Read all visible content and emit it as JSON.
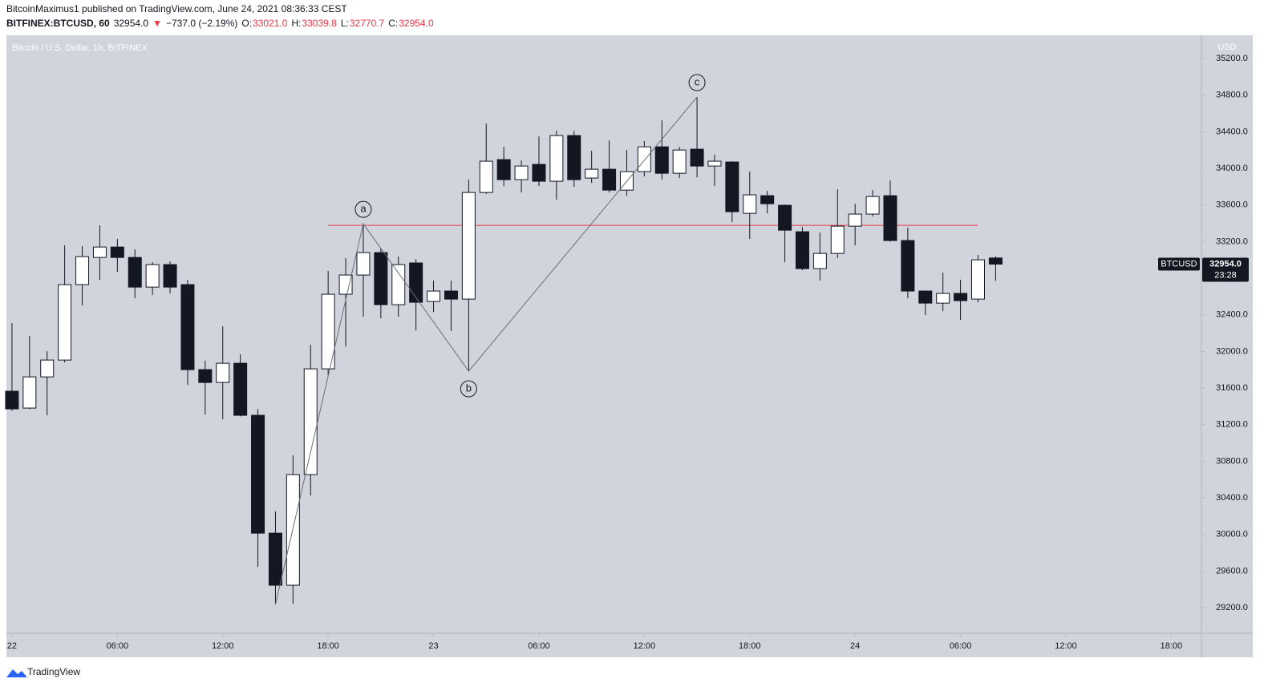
{
  "header": {
    "line1": "BitcoinMaximus1 published on TradingView.com, June 24, 2021 08:36:33 CEST",
    "symbol": "BITFINEX:BTCUSD, 60",
    "last": "32954.0",
    "arrow": "▼",
    "change": "−737.0 (−2.19%)",
    "o_key": "O:",
    "o": "33021.0",
    "h_key": "H:",
    "h": "33039.8",
    "l_key": "L:",
    "l": "32770.7",
    "c_key": "C:",
    "c": "32954.0"
  },
  "footer": "TradingView",
  "chart_data": {
    "type": "candlestick",
    "title": "Bitcoin / U.S. Dollar, 1h, BITFINEX",
    "y_axis_label": "USD",
    "price_tag": {
      "symbol": "BTCUSD",
      "price": "32954.0",
      "countdown": "23:28"
    },
    "up_color": "#ffffff",
    "down_color": "#131722",
    "x": [
      "2021-06-22T00:00",
      "2021-06-22T01:00",
      "2021-06-22T02:00",
      "2021-06-22T03:00",
      "2021-06-22T04:00",
      "2021-06-22T05:00",
      "2021-06-22T06:00",
      "2021-06-22T07:00",
      "2021-06-22T08:00",
      "2021-06-22T09:00",
      "2021-06-22T10:00",
      "2021-06-22T11:00",
      "2021-06-22T12:00",
      "2021-06-22T13:00",
      "2021-06-22T14:00",
      "2021-06-22T15:00",
      "2021-06-22T16:00",
      "2021-06-22T17:00",
      "2021-06-22T18:00",
      "2021-06-22T19:00",
      "2021-06-22T20:00",
      "2021-06-22T21:00",
      "2021-06-22T22:00",
      "2021-06-22T23:00",
      "2021-06-23T00:00",
      "2021-06-23T01:00",
      "2021-06-23T02:00",
      "2021-06-23T03:00",
      "2021-06-23T04:00",
      "2021-06-23T05:00",
      "2021-06-23T06:00",
      "2021-06-23T07:00",
      "2021-06-23T08:00",
      "2021-06-23T09:00",
      "2021-06-23T10:00",
      "2021-06-23T11:00",
      "2021-06-23T12:00",
      "2021-06-23T13:00",
      "2021-06-23T14:00",
      "2021-06-23T15:00",
      "2021-06-23T16:00",
      "2021-06-23T17:00",
      "2021-06-23T18:00",
      "2021-06-23T19:00",
      "2021-06-23T20:00",
      "2021-06-23T21:00",
      "2021-06-23T22:00",
      "2021-06-23T23:00",
      "2021-06-24T00:00",
      "2021-06-24T01:00",
      "2021-06-24T02:00",
      "2021-06-24T03:00",
      "2021-06-24T04:00",
      "2021-06-24T05:00",
      "2021-06-24T06:00",
      "2021-06-24T07:00",
      "2021-06-24T08:00"
    ],
    "open": [
      31565,
      31381,
      31722,
      31906,
      32730,
      33027,
      33141,
      33027,
      32703,
      32949,
      32730,
      31801,
      31661,
      31871,
      31302,
      30014,
      29445,
      30654,
      31810,
      32625,
      32835,
      33080,
      32511,
      32967,
      32546,
      32660,
      32572,
      33737,
      34096,
      33877,
      34044,
      33860,
      34359,
      33895,
      33991,
      33763,
      33965,
      34236,
      33947,
      34210,
      34026,
      34070,
      33509,
      33702,
      33597,
      33308,
      32905,
      33071,
      33369,
      33501,
      33702,
      33212,
      32660,
      32528,
      32634,
      32572,
      33021
    ],
    "high": [
      32310,
      32169,
      32003,
      33159,
      33150,
      33378,
      33229,
      33115,
      32975,
      32984,
      32782,
      31898,
      32274,
      31968,
      31372,
      30251,
      30864,
      32073,
      32879,
      33019,
      33395,
      33124,
      33036,
      33010,
      32774,
      32774,
      33877,
      34490,
      34236,
      34087,
      34350,
      34411,
      34411,
      34193,
      34306,
      34201,
      34298,
      34525,
      34236,
      34780,
      34149,
      34079,
      33965,
      33755,
      33606,
      33360,
      33299,
      33772,
      33614,
      33763,
      33869,
      33352,
      32665,
      32861,
      32782,
      33054,
      33039.8
    ],
    "low": [
      31350,
      31370,
      31302,
      31880,
      32502,
      32782,
      32870,
      32581,
      32616,
      32633,
      31635,
      31311,
      31258,
      31290,
      29646,
      29235,
      29244,
      30426,
      31740,
      32055,
      32379,
      32362,
      32379,
      32230,
      32432,
      32222,
      31784,
      33720,
      33807,
      33737,
      33807,
      33658,
      33798,
      33842,
      33737,
      33702,
      33912,
      33877,
      33895,
      33903,
      33807,
      33413,
      33229,
      33509,
      32975,
      32888,
      32774,
      33019,
      33159,
      33474,
      33200,
      32581,
      32397,
      32441,
      32344,
      32537,
      32770.7
    ],
    "close": [
      31372,
      31722,
      31906,
      32730,
      33036,
      33141,
      33027,
      32703,
      32949,
      32703,
      31801,
      31661,
      31871,
      31302,
      30014,
      29445,
      30654,
      31810,
      32625,
      32835,
      33080,
      32511,
      32949,
      32537,
      32660,
      32572,
      33737,
      34079,
      33877,
      34026,
      33860,
      34359,
      33877,
      33991,
      33763,
      33965,
      34236,
      33947,
      34201,
      34026,
      34079,
      33527,
      33711,
      33614,
      33325,
      32905,
      33071,
      33369,
      33501,
      33693,
      33212,
      32660,
      32528,
      32634,
      32555,
      33001,
      32954
    ],
    "xlim": [
      "2021-06-21T23:41",
      "2021-06-24T19:43"
    ],
    "xticks": [
      {
        "value": "2021-06-22T00:00",
        "label": "22"
      },
      {
        "value": "2021-06-22T06:00",
        "label": "06:00"
      },
      {
        "value": "2021-06-22T12:00",
        "label": "12:00"
      },
      {
        "value": "2021-06-22T18:00",
        "label": "18:00"
      },
      {
        "value": "2021-06-23T00:00",
        "label": "23"
      },
      {
        "value": "2021-06-23T06:00",
        "label": "06:00"
      },
      {
        "value": "2021-06-23T12:00",
        "label": "12:00"
      },
      {
        "value": "2021-06-23T18:00",
        "label": "18:00"
      },
      {
        "value": "2021-06-24T00:00",
        "label": "24"
      },
      {
        "value": "2021-06-24T06:00",
        "label": "06:00"
      },
      {
        "value": "2021-06-24T12:00",
        "label": "12:00"
      },
      {
        "value": "2021-06-24T18:00",
        "label": "18:00"
      }
    ],
    "ylim": [
      28920,
      35455
    ],
    "yticks": [
      {
        "value": 29200,
        "label": "29200.0"
      },
      {
        "value": 29600,
        "label": "29600.0"
      },
      {
        "value": 30000,
        "label": "30000.0"
      },
      {
        "value": 30400,
        "label": "30400.0"
      },
      {
        "value": 30800,
        "label": "30800.0"
      },
      {
        "value": 31200,
        "label": "31200.0"
      },
      {
        "value": 31600,
        "label": "31600.0"
      },
      {
        "value": 32000,
        "label": "32000.0"
      },
      {
        "value": 32400,
        "label": "32400.0"
      },
      {
        "value": 32800,
        "label": "32800.0"
      },
      {
        "value": 33200,
        "label": "33200.0"
      },
      {
        "value": 33600,
        "label": "33600.0"
      },
      {
        "value": 34000,
        "label": "34000.0"
      },
      {
        "value": 34400,
        "label": "34400.0"
      },
      {
        "value": 34800,
        "label": "34800.0"
      },
      {
        "value": 35200,
        "label": "35200.0"
      }
    ],
    "hline": {
      "value": 33378,
      "x": [
        "2021-06-22T18:00",
        "2021-06-24T07:00"
      ],
      "color": "#f23645"
    },
    "wave": {
      "color": "#6b6f7a",
      "points": [
        {
          "x": "2021-06-22T15:00",
          "y": 29235
        },
        {
          "x": "2021-06-22T20:00",
          "y": 33395,
          "label": "a",
          "side": "above"
        },
        {
          "x": "2021-06-23T02:00",
          "y": 31784,
          "label": "b",
          "side": "below"
        },
        {
          "x": "2021-06-23T15:00",
          "y": 34780,
          "label": "c",
          "side": "above"
        }
      ]
    }
  }
}
